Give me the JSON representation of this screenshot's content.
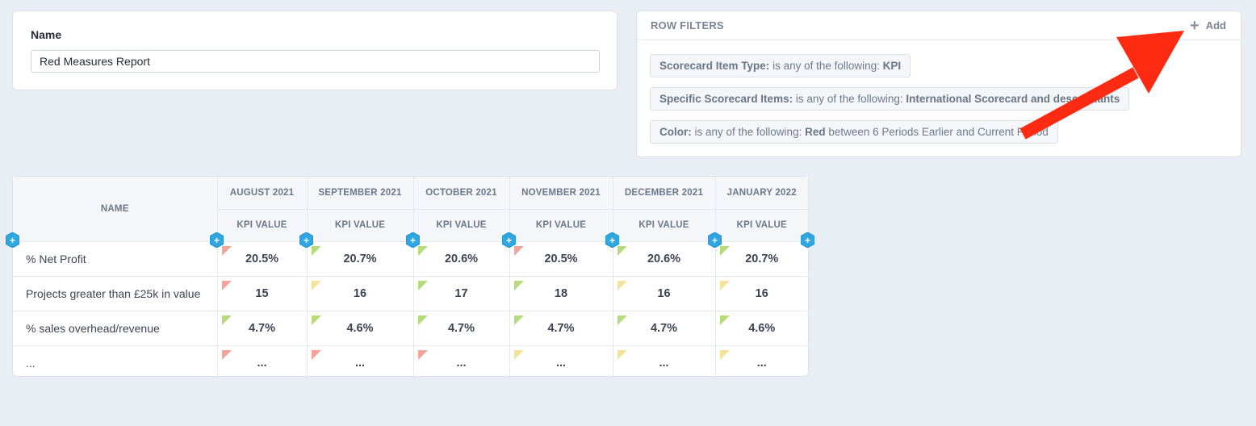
{
  "name_card": {
    "label": "Name",
    "value": "Red Measures Report"
  },
  "row_filters": {
    "title": "ROW FILTERS",
    "add_label": "Add",
    "filters": [
      {
        "parts": [
          [
            "b",
            "Scorecard Item Type:"
          ],
          [
            "t",
            " is any of the following: "
          ],
          [
            "b",
            "KPI"
          ]
        ]
      },
      {
        "parts": [
          [
            "b",
            "Specific Scorecard Items:"
          ],
          [
            "t",
            " is any of the following: "
          ],
          [
            "b",
            "International Scorecard and descendants"
          ]
        ]
      },
      {
        "parts": [
          [
            "b",
            "Color:"
          ],
          [
            "t",
            " is any of the following: "
          ],
          [
            "b",
            "Red"
          ],
          [
            "t",
            " between 6 Periods Earlier and Current Period"
          ]
        ]
      }
    ]
  },
  "table": {
    "name_header": "NAME",
    "periods": [
      "AUGUST 2021",
      "SEPTEMBER 2021",
      "OCTOBER 2021",
      "NOVEMBER 2021",
      "DECEMBER 2021",
      "JANUARY 2022"
    ],
    "sub_header": "KPI VALUE",
    "rows": [
      {
        "name": "% Net Profit",
        "cells": [
          {
            "v": "20.5%",
            "c": "red"
          },
          {
            "v": "20.7%",
            "c": "green"
          },
          {
            "v": "20.6%",
            "c": "green"
          },
          {
            "v": "20.5%",
            "c": "red"
          },
          {
            "v": "20.6%",
            "c": "green"
          },
          {
            "v": "20.7%",
            "c": "green"
          }
        ]
      },
      {
        "name": "Projects greater than £25k in value",
        "cells": [
          {
            "v": "15",
            "c": "red"
          },
          {
            "v": "16",
            "c": "yellow"
          },
          {
            "v": "17",
            "c": "green"
          },
          {
            "v": "18",
            "c": "green"
          },
          {
            "v": "16",
            "c": "yellow"
          },
          {
            "v": "16",
            "c": "yellow"
          }
        ]
      },
      {
        "name": "% sales overhead/revenue",
        "cells": [
          {
            "v": "4.7%",
            "c": "green"
          },
          {
            "v": "4.6%",
            "c": "green"
          },
          {
            "v": "4.7%",
            "c": "green"
          },
          {
            "v": "4.7%",
            "c": "green"
          },
          {
            "v": "4.7%",
            "c": "green"
          },
          {
            "v": "4.6%",
            "c": "green"
          }
        ]
      },
      {
        "name": "...",
        "cells": [
          {
            "v": "...",
            "c": "red"
          },
          {
            "v": "...",
            "c": "red"
          },
          {
            "v": "...",
            "c": "red"
          },
          {
            "v": "...",
            "c": "yellow"
          },
          {
            "v": "...",
            "c": "yellow"
          },
          {
            "v": "...",
            "c": "yellow"
          }
        ]
      }
    ]
  },
  "colors": {
    "red": "#f4a498",
    "green": "#b6dc7a",
    "yellow": "#f5e39a",
    "hex_blue": "#2fa7e3",
    "arrow": "#ff2a12"
  },
  "icons": {
    "add": "plus-icon",
    "insert_column": "add-column-hex-icon",
    "annotation": "red-arrow"
  }
}
